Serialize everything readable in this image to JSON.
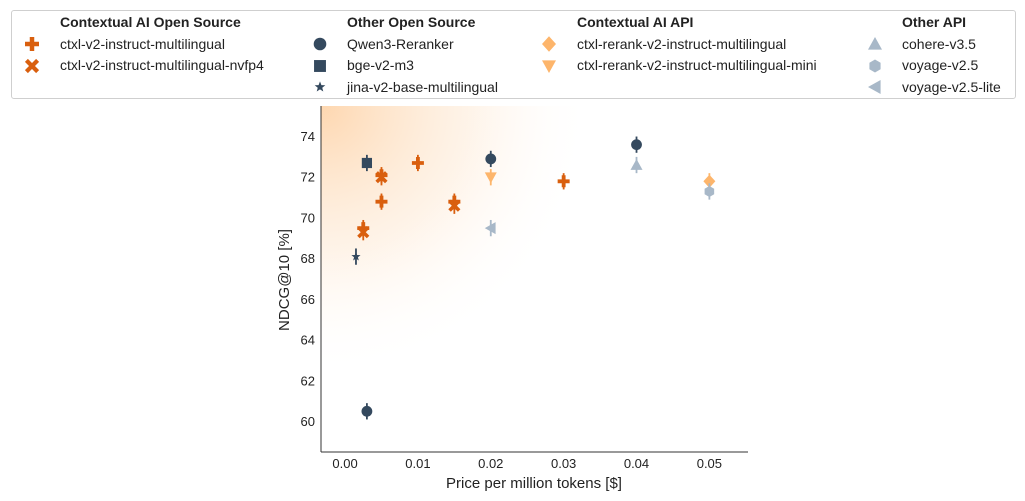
{
  "colors": {
    "ctx_oss": "#d95f0e",
    "other_oss": "#34495e",
    "ctx_api": "#fdb56b",
    "other_api": "#a8b8c8"
  },
  "chart_data": {
    "type": "scatter",
    "xlabel": "Price per million tokens [$]",
    "ylabel": "NDCG@10 [%]",
    "xlim": [
      -0.0033,
      0.0553
    ],
    "ylim": [
      58.5,
      75.5
    ],
    "xticks": [
      0.0,
      0.01,
      0.02,
      0.03,
      0.04,
      0.05
    ],
    "xtick_labels": [
      "0.00",
      "0.01",
      "0.02",
      "0.03",
      "0.04",
      "0.05"
    ],
    "yticks": [
      60,
      62,
      64,
      66,
      68,
      70,
      72,
      74
    ],
    "ytick_labels": [
      "60",
      "62",
      "64",
      "66",
      "68",
      "70",
      "72",
      "74"
    ],
    "grid": false,
    "legend_groups": [
      {
        "title": "Contextual AI Open Source",
        "color": "ctx_oss",
        "series": [
          {
            "name": "ctxl-v2-instruct-multilingual",
            "marker": "plus-icon",
            "points": [
              {
                "x": 0.0025,
                "y": 69.5,
                "err": 0.4
              },
              {
                "x": 0.005,
                "y": 70.8,
                "err": 0.4
              },
              {
                "x": 0.005,
                "y": 72.1,
                "err": 0.4
              },
              {
                "x": 0.01,
                "y": 72.7,
                "err": 0.4
              },
              {
                "x": 0.015,
                "y": 70.8,
                "err": 0.4
              },
              {
                "x": 0.03,
                "y": 71.8,
                "err": 0.4
              }
            ]
          },
          {
            "name": "ctxl-v2-instruct-multilingual-nvfp4",
            "marker": "cross-icon",
            "points": [
              {
                "x": 0.0025,
                "y": 69.3,
                "err": 0.4
              },
              {
                "x": 0.005,
                "y": 72.0,
                "err": 0.4
              },
              {
                "x": 0.015,
                "y": 70.6,
                "err": 0.4
              }
            ]
          }
        ]
      },
      {
        "title": "Other Open Source",
        "color": "other_oss",
        "series": [
          {
            "name": "Qwen3-Reranker",
            "marker": "circle-icon",
            "points": [
              {
                "x": 0.003,
                "y": 60.5,
                "err": 0.4
              },
              {
                "x": 0.02,
                "y": 72.9,
                "err": 0.4
              },
              {
                "x": 0.04,
                "y": 73.6,
                "err": 0.4
              }
            ]
          },
          {
            "name": "bge-v2-m3",
            "marker": "square-icon",
            "points": [
              {
                "x": 0.003,
                "y": 72.7,
                "err": 0.4
              }
            ]
          },
          {
            "name": "jina-v2-base-multilingual",
            "marker": "star-icon",
            "points": [
              {
                "x": 0.0015,
                "y": 68.1,
                "err": 0.4
              }
            ]
          }
        ]
      },
      {
        "title": "Contextual AI API",
        "color": "ctx_api",
        "series": [
          {
            "name": "ctxl-rerank-v2-instruct-multilingual",
            "marker": "diamond-icon",
            "points": [
              {
                "x": 0.05,
                "y": 71.8,
                "err": 0.4
              }
            ]
          },
          {
            "name": "ctxl-rerank-v2-instruct-multilingual-mini",
            "marker": "triangle-down-icon",
            "points": [
              {
                "x": 0.02,
                "y": 72.0,
                "err": 0.4
              }
            ]
          }
        ]
      },
      {
        "title": "Other API",
        "color": "other_api",
        "series": [
          {
            "name": "cohere-v3.5",
            "marker": "triangle-up-icon",
            "points": [
              {
                "x": 0.04,
                "y": 72.6,
                "err": 0.4
              }
            ]
          },
          {
            "name": "voyage-v2.5",
            "marker": "hexagon-icon",
            "points": [
              {
                "x": 0.05,
                "y": 71.3,
                "err": 0.4
              }
            ]
          },
          {
            "name": "voyage-v2.5-lite",
            "marker": "triangle-left-icon",
            "points": [
              {
                "x": 0.02,
                "y": 69.5,
                "err": 0.4
              }
            ]
          }
        ]
      }
    ]
  }
}
